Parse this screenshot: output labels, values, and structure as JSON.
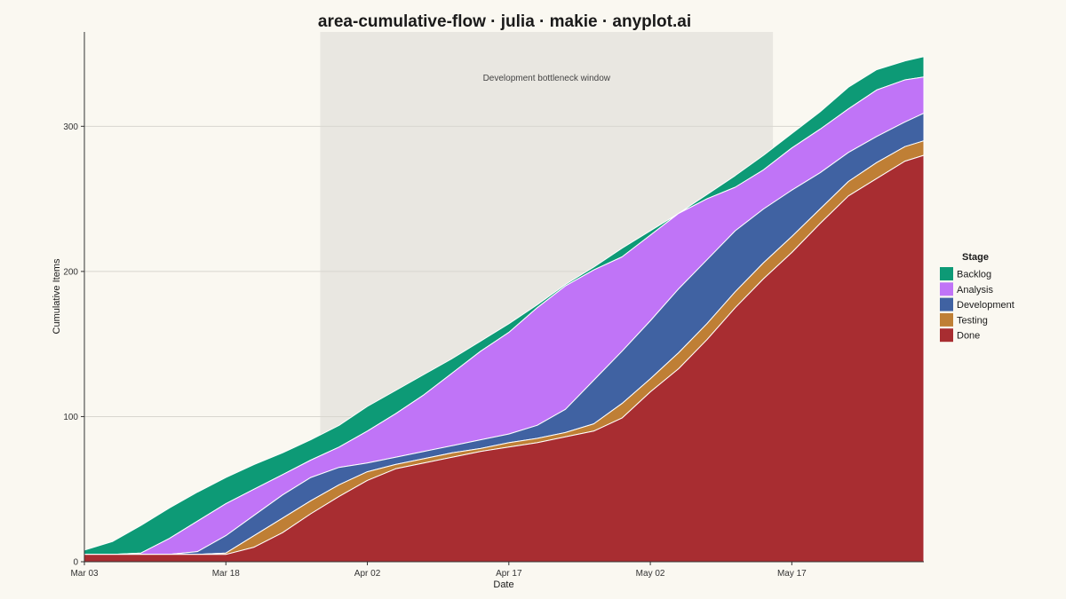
{
  "chart_data": {
    "type": "area",
    "stacked": true,
    "title": "area-cumulative-flow · julia · makie · anyplot.ai",
    "xlabel": "Date",
    "ylabel": "Cumulative Items",
    "ylim": [
      0,
      365
    ],
    "y_ticks": [
      0,
      100,
      200,
      300
    ],
    "x_ticks": [
      "Mar 03",
      "Mar 18",
      "Apr 02",
      "Apr 17",
      "May 02",
      "May 17"
    ],
    "x_tick_days": [
      0,
      15,
      30,
      45,
      60,
      75
    ],
    "x_days": [
      0,
      3,
      6,
      9,
      12,
      15,
      18,
      21,
      24,
      27,
      30,
      33,
      36,
      39,
      42,
      45,
      48,
      51,
      54,
      57,
      60,
      63,
      66,
      69,
      72,
      75,
      78,
      81,
      84,
      87,
      89
    ],
    "grid": true,
    "legend": {
      "title": "Stage",
      "position": "right"
    },
    "annotation": {
      "text": "Development bottleneck window",
      "x_start_day": 25,
      "x_end_day": 73
    },
    "series": [
      {
        "name": "Done",
        "color": "#A82D31",
        "values": [
          5,
          5,
          5,
          5,
          5,
          5,
          10,
          20,
          33,
          45,
          56,
          64,
          68,
          72,
          76,
          79,
          82,
          86,
          90,
          99,
          117,
          133,
          153,
          175,
          195,
          213,
          233,
          252,
          264,
          276,
          280
        ]
      },
      {
        "name": "Testing",
        "color": "#BF7F35",
        "values": [
          5,
          5,
          5,
          5,
          5,
          6,
          18,
          30,
          42,
          53,
          62,
          67,
          71,
          75,
          78,
          82,
          85,
          89,
          95,
          109,
          126,
          144,
          164,
          186,
          206,
          224,
          243,
          262,
          275,
          286,
          290
        ]
      },
      {
        "name": "Development",
        "color": "#4062A2",
        "values": [
          5,
          5,
          5,
          5,
          7,
          18,
          32,
          46,
          58,
          65,
          68,
          72,
          76,
          80,
          84,
          88,
          94,
          105,
          125,
          145,
          166,
          188,
          208,
          228,
          243,
          256,
          268,
          282,
          293,
          303,
          309
        ]
      },
      {
        "name": "Analysis",
        "color": "#C074F7",
        "values": [
          5,
          5,
          6,
          16,
          28,
          40,
          50,
          60,
          70,
          79,
          90,
          102,
          115,
          130,
          145,
          158,
          175,
          190,
          201,
          210,
          225,
          240,
          250,
          258,
          270,
          285,
          298,
          312,
          325,
          332,
          334
        ]
      },
      {
        "name": "Backlog",
        "color": "#0D9A76",
        "values": [
          8,
          14,
          25,
          37,
          48,
          58,
          67,
          75,
          84,
          94,
          107,
          118,
          129,
          140,
          152,
          164,
          177,
          191,
          203,
          216,
          228,
          240,
          253,
          266,
          280,
          295,
          310,
          327,
          339,
          345,
          348
        ]
      }
    ]
  }
}
